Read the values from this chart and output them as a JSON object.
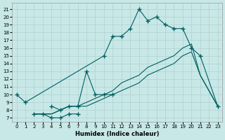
{
  "xlabel": "Humidex (Indice chaleur)",
  "bg_color": "#c8e8e8",
  "grid_color": "#b0d0d0",
  "line_color": "#005f5f",
  "xlim": [
    -0.5,
    23.5
  ],
  "ylim": [
    6.5,
    21.8
  ],
  "yticks": [
    7,
    8,
    9,
    10,
    11,
    12,
    13,
    14,
    15,
    16,
    17,
    18,
    19,
    20,
    21
  ],
  "xticks": [
    0,
    1,
    2,
    3,
    4,
    5,
    6,
    7,
    8,
    9,
    10,
    11,
    12,
    13,
    14,
    15,
    16,
    17,
    18,
    19,
    20,
    21,
    22,
    23
  ],
  "curve1_x": [
    0,
    1,
    10,
    11,
    12,
    13,
    14,
    15,
    16,
    17,
    18,
    19,
    20,
    21,
    23
  ],
  "curve1_y": [
    10.0,
    9.0,
    15.0,
    17.5,
    17.5,
    18.5,
    21.0,
    19.5,
    20.0,
    19.0,
    18.5,
    18.5,
    16.0,
    15.0,
    8.5
  ],
  "curve2_x": [
    4,
    5,
    6,
    7,
    8,
    9,
    10,
    11
  ],
  "curve2_y": [
    8.5,
    8.0,
    8.5,
    8.5,
    13.0,
    10.0,
    10.0,
    10.0
  ],
  "curve3_x": [
    2,
    3,
    4,
    5,
    6,
    7
  ],
  "curve3_y": [
    7.5,
    7.5,
    7.0,
    7.0,
    7.5,
    7.5
  ],
  "line_straight1_x": [
    2,
    3,
    4,
    5,
    6,
    7,
    8,
    9,
    10,
    11,
    12,
    13,
    14,
    15,
    16,
    17,
    18,
    19,
    20,
    21,
    22,
    23
  ],
  "line_straight1_y": [
    7.5,
    7.5,
    7.5,
    8.0,
    8.5,
    8.5,
    9.0,
    9.5,
    10.0,
    10.5,
    11.5,
    12.0,
    12.5,
    13.5,
    14.0,
    14.5,
    15.0,
    16.0,
    16.5,
    12.5,
    10.5,
    8.5
  ],
  "line_straight2_x": [
    2,
    3,
    4,
    5,
    6,
    7,
    8,
    9,
    10,
    11,
    12,
    13,
    14,
    15,
    16,
    17,
    18,
    19,
    20,
    21,
    22,
    23
  ],
  "line_straight2_y": [
    7.5,
    7.5,
    7.5,
    8.0,
    8.5,
    8.5,
    8.5,
    9.0,
    9.5,
    10.0,
    10.5,
    11.0,
    11.5,
    12.5,
    13.0,
    13.5,
    14.0,
    15.0,
    15.5,
    12.5,
    10.5,
    8.5
  ]
}
